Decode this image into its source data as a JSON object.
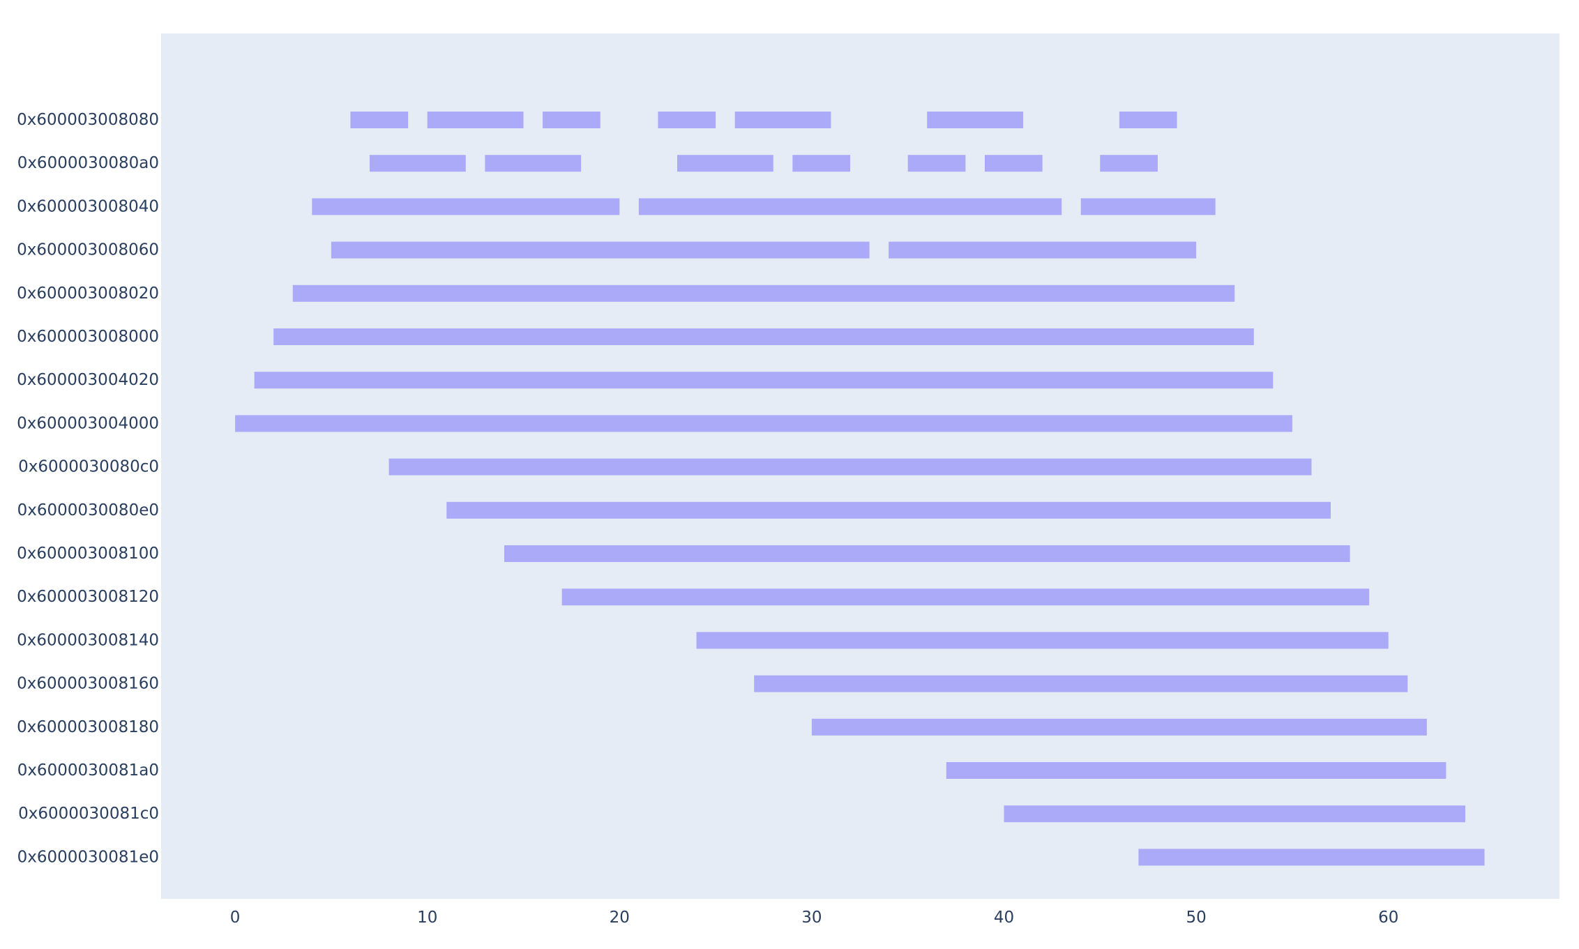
{
  "chart_data": {
    "type": "timeline",
    "title": "",
    "xlabel": "",
    "ylabel": "",
    "xlim": [
      -3.85,
      68.9
    ],
    "x_ticks": [
      0,
      10,
      20,
      30,
      40,
      50,
      60
    ],
    "grid": false,
    "legend": "none",
    "colors": {
      "plot_bg": "#e5ecf6",
      "bar": "#aaaaf8",
      "text": "#2a3f5f",
      "page_bg": "#ffffff"
    },
    "rows": [
      {
        "label": "0x600003008080",
        "intervals": [
          [
            6,
            9
          ],
          [
            10,
            15
          ],
          [
            16,
            19
          ],
          [
            22,
            25
          ],
          [
            26,
            31
          ],
          [
            36,
            41
          ],
          [
            46,
            49
          ]
        ]
      },
      {
        "label": "0x6000030080a0",
        "intervals": [
          [
            7,
            12
          ],
          [
            13,
            18
          ],
          [
            23,
            28
          ],
          [
            29,
            32
          ],
          [
            35,
            38
          ],
          [
            39,
            42
          ],
          [
            45,
            48
          ]
        ]
      },
      {
        "label": "0x600003008040",
        "intervals": [
          [
            4,
            20
          ],
          [
            21,
            43
          ],
          [
            44,
            51
          ]
        ]
      },
      {
        "label": "0x600003008060",
        "intervals": [
          [
            5,
            33
          ],
          [
            34,
            50
          ]
        ]
      },
      {
        "label": "0x600003008020",
        "intervals": [
          [
            3,
            52
          ]
        ]
      },
      {
        "label": "0x600003008000",
        "intervals": [
          [
            2,
            53
          ]
        ]
      },
      {
        "label": "0x600003004020",
        "intervals": [
          [
            1,
            54
          ]
        ]
      },
      {
        "label": "0x600003004000",
        "intervals": [
          [
            0,
            55
          ]
        ]
      },
      {
        "label": "0x6000030080c0",
        "intervals": [
          [
            8,
            56
          ]
        ]
      },
      {
        "label": "0x6000030080e0",
        "intervals": [
          [
            11,
            57
          ]
        ]
      },
      {
        "label": "0x600003008100",
        "intervals": [
          [
            14,
            58
          ]
        ]
      },
      {
        "label": "0x600003008120",
        "intervals": [
          [
            17,
            59
          ]
        ]
      },
      {
        "label": "0x600003008140",
        "intervals": [
          [
            24,
            60
          ]
        ]
      },
      {
        "label": "0x600003008160",
        "intervals": [
          [
            27,
            61
          ]
        ]
      },
      {
        "label": "0x600003008180",
        "intervals": [
          [
            30,
            62
          ]
        ]
      },
      {
        "label": "0x6000030081a0",
        "intervals": [
          [
            37,
            63
          ]
        ]
      },
      {
        "label": "0x6000030081c0",
        "intervals": [
          [
            40,
            64
          ]
        ]
      },
      {
        "label": "0x6000030081e0",
        "intervals": [
          [
            47,
            65
          ]
        ]
      }
    ]
  }
}
